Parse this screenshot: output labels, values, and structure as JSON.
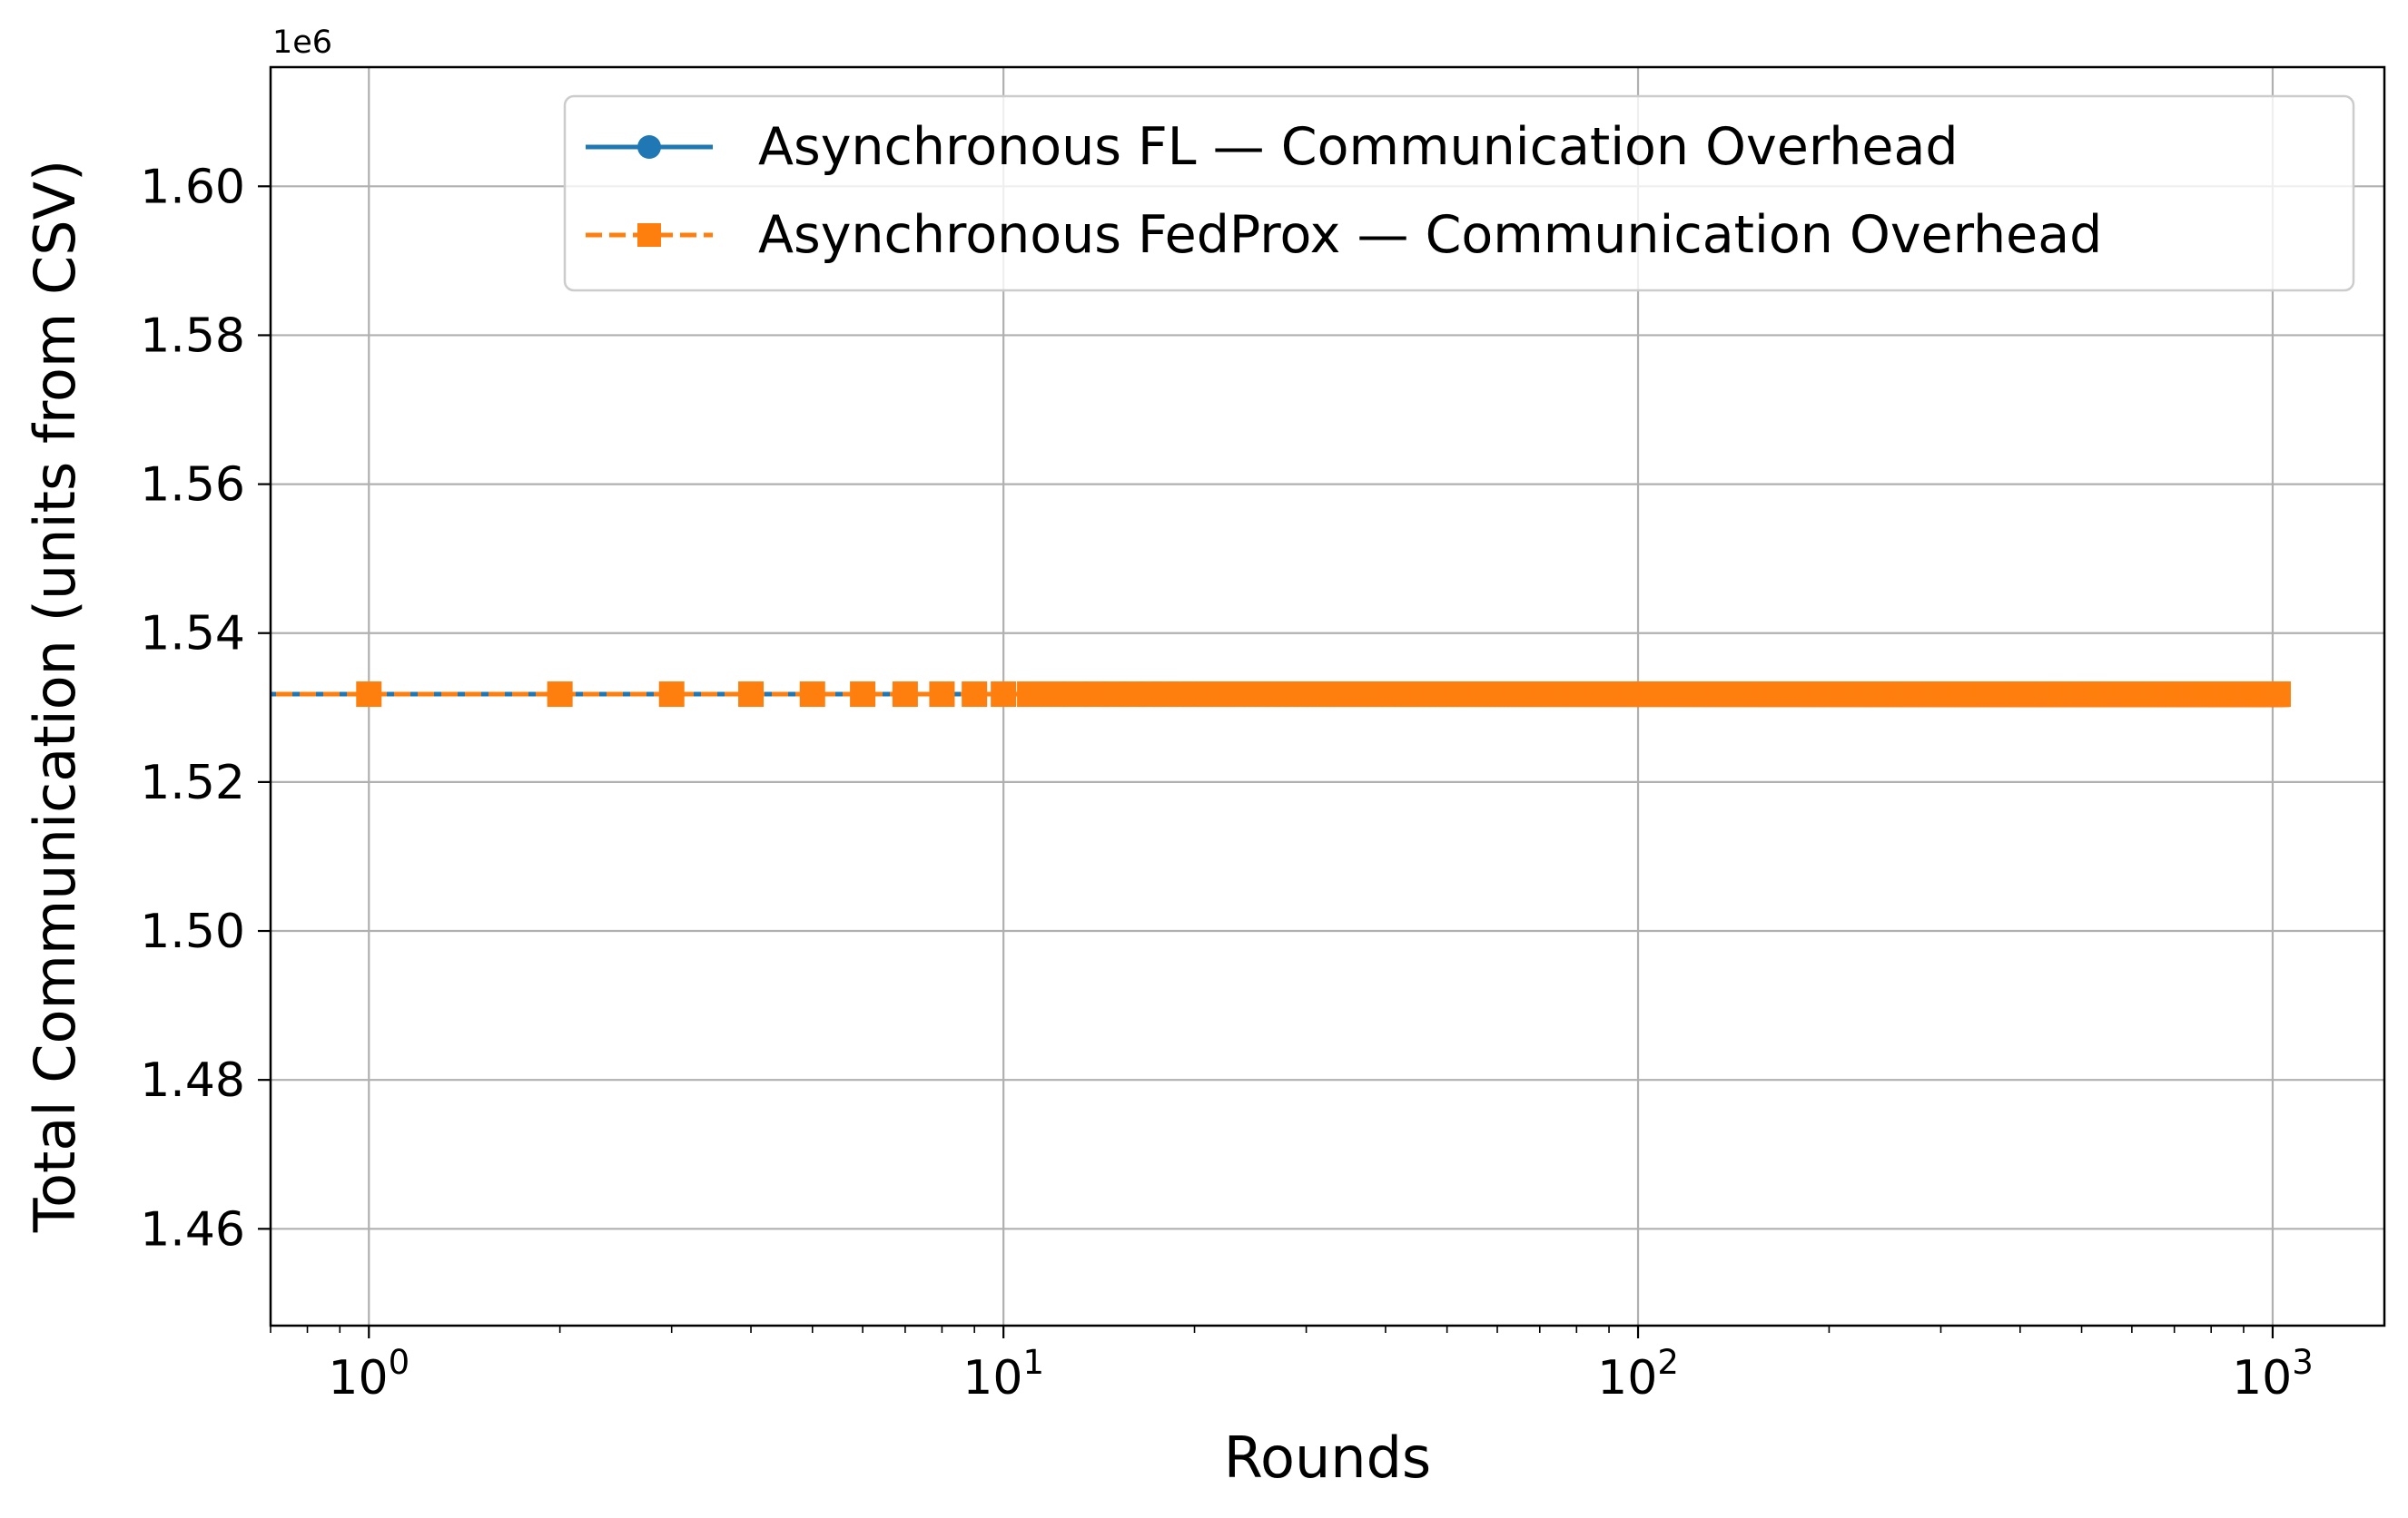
{
  "chart_data": {
    "type": "line",
    "title": "",
    "xlabel": "Rounds",
    "ylabel": "Total Communication (units from CSV)",
    "x_scale": "log",
    "xlim": [
      0.7,
      1500
    ],
    "x_ticks": [
      {
        "value": 1,
        "base": "10",
        "exp": "0"
      },
      {
        "value": 10,
        "base": "10",
        "exp": "1"
      },
      {
        "value": 100,
        "base": "10",
        "exp": "2"
      },
      {
        "value": 1000,
        "base": "10",
        "exp": "3"
      }
    ],
    "ylim": [
      1447000,
      1616000
    ],
    "y_offset_label": "1e6",
    "y_ticks": [
      {
        "value": 1460000,
        "label": "1.46"
      },
      {
        "value": 1480000,
        "label": "1.48"
      },
      {
        "value": 1500000,
        "label": "1.50"
      },
      {
        "value": 1520000,
        "label": "1.52"
      },
      {
        "value": 1540000,
        "label": "1.54"
      },
      {
        "value": 1560000,
        "label": "1.56"
      },
      {
        "value": 1580000,
        "label": "1.58"
      },
      {
        "value": 1600000,
        "label": "1.60"
      }
    ],
    "grid": true,
    "legend_position": "top-right",
    "x_range": [
      0,
      1020
    ],
    "series": [
      {
        "name": "Asynchronous FL — Communication Overhead",
        "color": "#1f77b4",
        "marker": "circle",
        "line_style": "solid",
        "y_constant": 1531800
      },
      {
        "name": "Asynchronous FedProx — Communication Overhead",
        "color": "#ff7f0e",
        "marker": "square",
        "line_style": "dashed",
        "y_constant": 1531800
      }
    ]
  }
}
